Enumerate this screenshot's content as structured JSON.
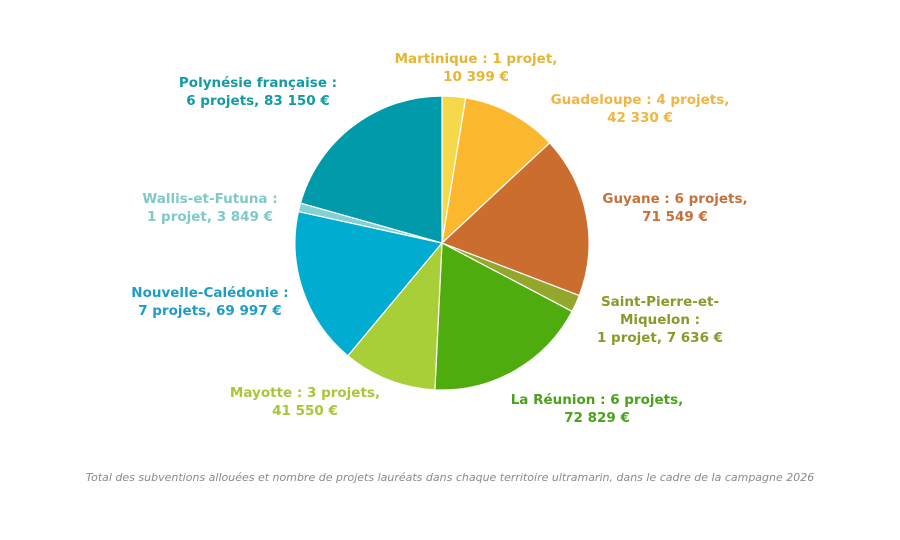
{
  "chart_data": {
    "type": "pie",
    "start_angle_deg": 0,
    "direction": "clockwise",
    "slices": [
      {
        "territory": "Martinique",
        "label_lines": [
          "Martinique : 1 projet,",
          "10 399 €"
        ],
        "projects": 1,
        "value": 10399,
        "color": "#F6D94A",
        "label_color": "#E6B631"
      },
      {
        "territory": "Guadeloupe",
        "label_lines": [
          "Guadeloupe : 4 projets,",
          "42 330 €"
        ],
        "projects": 4,
        "value": 42330,
        "color": "#FBB72E",
        "label_color": "#F0B542"
      },
      {
        "territory": "Guyane",
        "label_lines": [
          "Guyane : 6 projets,",
          "71 549 €"
        ],
        "projects": 6,
        "value": 71549,
        "color": "#CB6D2F",
        "label_color": "#C8703A"
      },
      {
        "territory": "Saint-Pierre-et-Miquelon",
        "label_lines": [
          "Saint-Pierre-et-",
          "Miquelon :",
          "1 projet,  7 636 €"
        ],
        "projects": 1,
        "value": 7636,
        "color": "#93A72C",
        "label_color": "#8A9A2A"
      },
      {
        "territory": "La Réunion",
        "label_lines": [
          "La Réunion : 6 projets,",
          "72 829 €"
        ],
        "projects": 6,
        "value": 72829,
        "color": "#4EAC0E",
        "label_color": "#4AA11A"
      },
      {
        "territory": "Mayotte",
        "label_lines": [
          "Mayotte : 3 projets,",
          "41 550 €"
        ],
        "projects": 3,
        "value": 41550,
        "color": "#A9CF38",
        "label_color": "#A8C639"
      },
      {
        "territory": "Nouvelle-Calédonie",
        "label_lines": [
          "Nouvelle-Calédonie :",
          "7 projets,  69 997 €"
        ],
        "projects": 7,
        "value": 69997,
        "color": "#00ADD0",
        "label_color": "#1E9DC4"
      },
      {
        "territory": "Wallis-et-Futuna",
        "label_lines": [
          "Wallis-et-Futuna :",
          "1 projet,  3 849 €"
        ],
        "projects": 1,
        "value": 3849,
        "color": "#84D0D6",
        "label_color": "#7FC9C9"
      },
      {
        "territory": "Polynésie française",
        "label_lines": [
          "Polynésie française :",
          "6 projets,  83 150 €"
        ],
        "projects": 6,
        "value": 83150,
        "color": "#009AAA",
        "label_color": "#129AA6"
      }
    ]
  },
  "caption": "Total des subventions allouées et nombre de projets lauréats dans chaque territoire ultramarin, dans le cadre de la campagne 2026"
}
